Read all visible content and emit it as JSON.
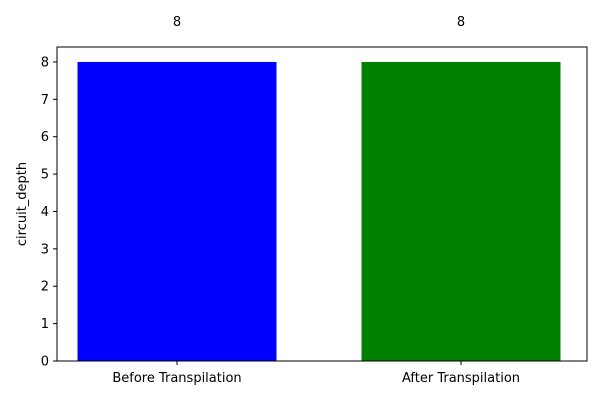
{
  "chart_data": {
    "type": "bar",
    "categories": [
      "Before Transpilation",
      "After Transpilation"
    ],
    "values": [
      8,
      8
    ],
    "colors": [
      "#0000ff",
      "#008000"
    ],
    "data_labels": [
      "8",
      "8"
    ],
    "title": "",
    "xlabel": "",
    "ylabel": "circuit_depth",
    "ylim": [
      0,
      8.4
    ],
    "yticks": [
      0,
      1,
      2,
      3,
      4,
      5,
      6,
      7,
      8
    ],
    "grid": false
  }
}
